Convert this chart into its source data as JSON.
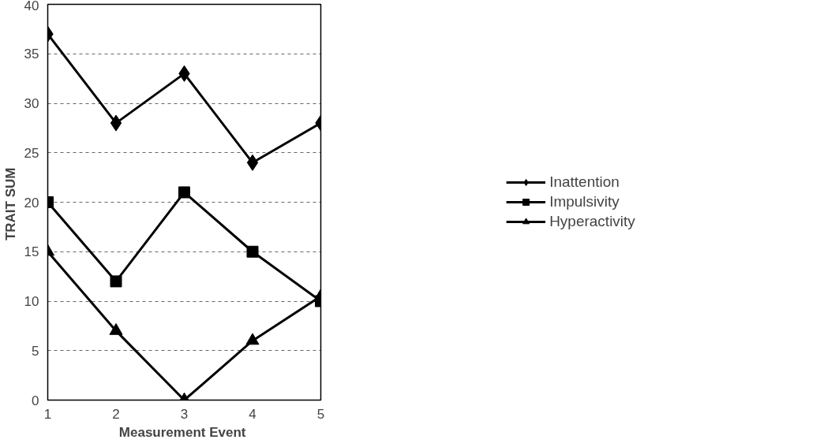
{
  "chart_data": {
    "type": "line",
    "xlabel": "Measurement  Event",
    "ylabel": "TRAIT  SUM",
    "x": [
      1,
      2,
      3,
      4,
      5
    ],
    "xlim": [
      1,
      5
    ],
    "xticks": [
      1,
      2,
      3,
      4,
      5
    ],
    "ylim": [
      0,
      40
    ],
    "yticks": [
      0,
      5,
      10,
      15,
      20,
      25,
      30,
      35,
      40
    ],
    "grid": "y",
    "legend": "right",
    "line_style": "solid",
    "series": [
      {
        "name": "Inattention",
        "color": "#000000",
        "marker": "diamond",
        "values": [
          37,
          28,
          33,
          24,
          28
        ]
      },
      {
        "name": "Impulsivity",
        "color": "#000000",
        "marker": "square",
        "values": [
          20,
          12,
          21,
          15,
          10
        ]
      },
      {
        "name": "Hyperactivity",
        "color": "#000000",
        "marker": "triangle",
        "values": [
          15,
          7,
          0,
          6,
          10.5
        ]
      }
    ]
  }
}
